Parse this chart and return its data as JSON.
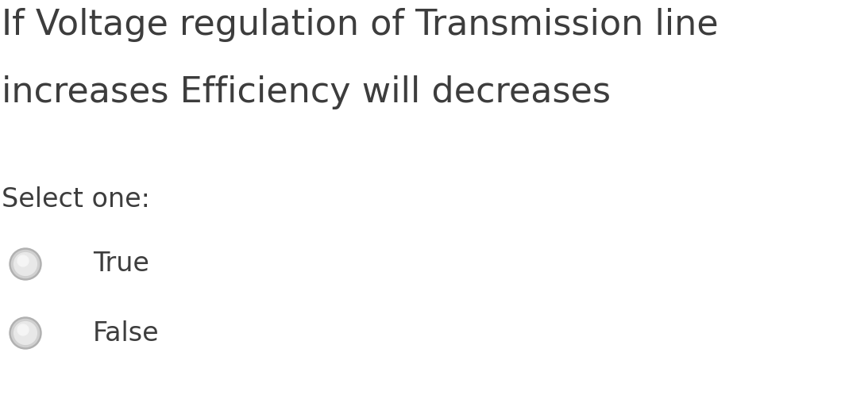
{
  "title_line1": "If Voltage regulation of Transmission line",
  "title_line2": "increases Efficiency will decreases",
  "select_label": "Select one:",
  "options": [
    "True",
    "False"
  ],
  "background_color": "#ffffff",
  "text_color": "#3d3d3d",
  "title_fontsize": 32,
  "select_fontsize": 24,
  "option_fontsize": 24,
  "radio_outer_color": "#c8c8c8",
  "radio_inner_color": "#f0f0f0"
}
